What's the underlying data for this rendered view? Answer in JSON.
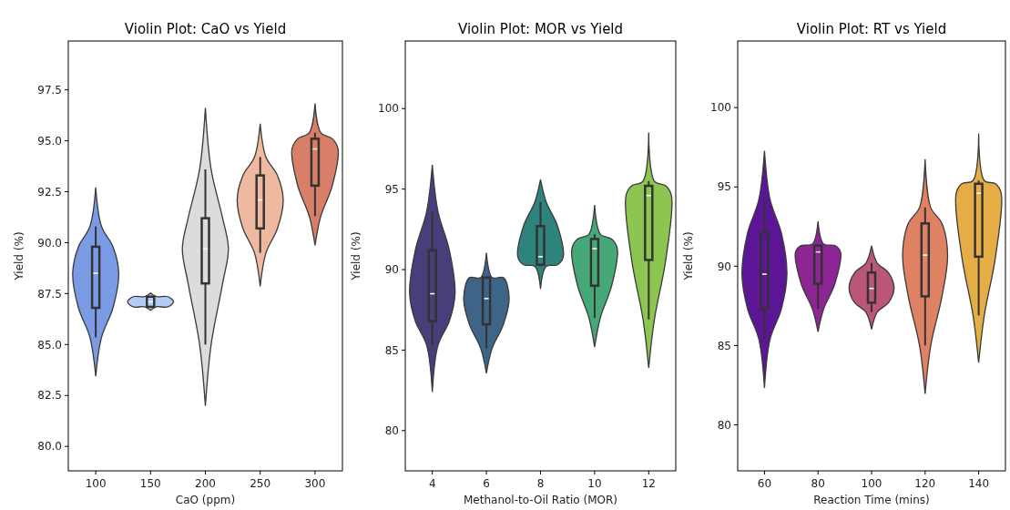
{
  "chart_data": [
    {
      "type": "box",
      "title": "Violin Plot: CaO vs Yield",
      "xlabel": "CaO (ppm)",
      "ylabel": "Yield (%)",
      "categories": [
        "100",
        "150",
        "200",
        "250",
        "300"
      ],
      "colors": [
        "#7b9be5",
        "#b4cbf5",
        "#dcdcdc",
        "#eeb99f",
        "#d87e69"
      ],
      "boxes": [
        {
          "low": 85.35,
          "q1": 86.8,
          "median": 88.5,
          "q3": 89.8,
          "high": 90.8
        },
        {
          "low": 86.85,
          "q1": 86.85,
          "median": 87.1,
          "q3": 87.35,
          "high": 87.35
        },
        {
          "low": 85.0,
          "q1": 88.0,
          "median": 89.7,
          "q3": 91.2,
          "high": 93.6
        },
        {
          "low": 89.5,
          "q1": 90.7,
          "median": 92.1,
          "q3": 93.3,
          "high": 94.2
        },
        {
          "low": 91.3,
          "q1": 92.8,
          "median": 94.6,
          "q3": 95.1,
          "high": 95.4
        }
      ],
      "ylim": [
        78.8,
        99.9
      ],
      "yticks": [
        {
          "value": 80,
          "label": "80.0"
        },
        82.5,
        {
          "value": 85,
          "label": "85.0"
        },
        87.5,
        {
          "value": 90,
          "label": "90.0"
        },
        92.5,
        {
          "value": 95,
          "label": "95.0"
        },
        97.5
      ]
    },
    {
      "type": "box",
      "title": "Violin Plot: MOR vs Yield",
      "xlabel": "Methanol-to-Oil Ratio (MOR)",
      "ylabel": "Yield (%)",
      "categories": [
        "4",
        "6",
        "8",
        "10",
        "12"
      ],
      "colors": [
        "#473f7a",
        "#3e6488",
        "#2e837d",
        "#47a877",
        "#8cc650"
      ],
      "boxes": [
        {
          "low": 85.3,
          "q1": 86.8,
          "median": 88.5,
          "q3": 91.2,
          "high": 93.6
        },
        {
          "low": 85.1,
          "q1": 86.6,
          "median": 88.2,
          "q3": 89.5,
          "high": 89.5
        },
        {
          "low": 90.2,
          "q1": 90.3,
          "median": 90.8,
          "q3": 92.7,
          "high": 94.2
        },
        {
          "low": 87.0,
          "q1": 89.0,
          "median": 91.3,
          "q3": 91.9,
          "high": 92.2
        },
        {
          "low": 86.9,
          "q1": 90.6,
          "median": 94.6,
          "q3": 95.2,
          "high": 95.5
        }
      ],
      "ylim": [
        77.5,
        104.2
      ],
      "yticks": [
        80,
        85,
        90,
        95,
        100
      ]
    },
    {
      "type": "box",
      "title": "Violin Plot: RT vs Yield",
      "xlabel": "Reaction Time (mins)",
      "ylabel": "Yield (%)",
      "categories": [
        "60",
        "80",
        "100",
        "120",
        "140"
      ],
      "colors": [
        "#5b1596",
        "#8e2595",
        "#bc5679",
        "#df8264",
        "#e5ad46"
      ],
      "boxes": [
        {
          "low": 85.4,
          "q1": 87.3,
          "median": 89.5,
          "q3": 92.1,
          "high": 94.2
        },
        {
          "low": 87.3,
          "q1": 88.9,
          "median": 90.9,
          "q3": 91.3,
          "high": 91.4
        },
        {
          "low": 87.1,
          "q1": 87.7,
          "median": 88.6,
          "q3": 89.6,
          "high": 90.2
        },
        {
          "low": 85.0,
          "q1": 88.1,
          "median": 90.7,
          "q3": 92.7,
          "high": 93.7
        },
        {
          "low": 86.9,
          "q1": 90.6,
          "median": 94.6,
          "q3": 95.2,
          "high": 95.4
        }
      ],
      "ylim": [
        77.1,
        104.2
      ],
      "yticks": [
        80,
        85,
        90,
        95,
        100
      ]
    }
  ]
}
